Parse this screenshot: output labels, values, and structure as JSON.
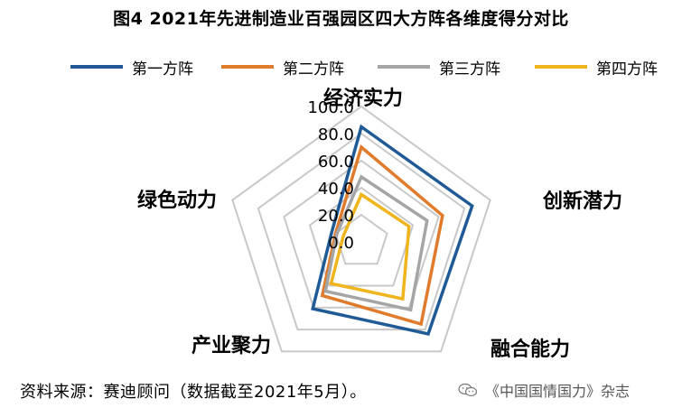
{
  "title": "图4   2021年先进制造业百强园区四大方阵各维度得分对比",
  "chart_data": {
    "type": "radar",
    "axes": [
      "经济实力",
      "创新潜力",
      "融合能力",
      "产业聚力",
      "绿色动力"
    ],
    "scale_ticks": [
      "100.0",
      "80.0",
      "60.0",
      "40.0",
      "20.0",
      "0.0"
    ],
    "rmax": 100,
    "grid": true,
    "legend_position": "top",
    "series": [
      {
        "name": "第一方阵",
        "color": "#1f5a96",
        "values": [
          85,
          86,
          84,
          61,
          23
        ]
      },
      {
        "name": "第二方阵",
        "color": "#e07b2c",
        "values": [
          70,
          63,
          75,
          49,
          20
        ]
      },
      {
        "name": "第三方阵",
        "color": "#a5a5a5",
        "values": [
          48,
          51,
          62,
          45,
          19
        ]
      },
      {
        "name": "第四方阵",
        "color": "#f0b41c",
        "values": [
          35,
          37,
          52,
          38,
          14
        ]
      }
    ]
  },
  "source": "资料来源：赛迪顾问（数据截至2021年5月）。",
  "watermark": {
    "text": "《中国国情国力》杂志",
    "icon": "wechat-icon"
  }
}
